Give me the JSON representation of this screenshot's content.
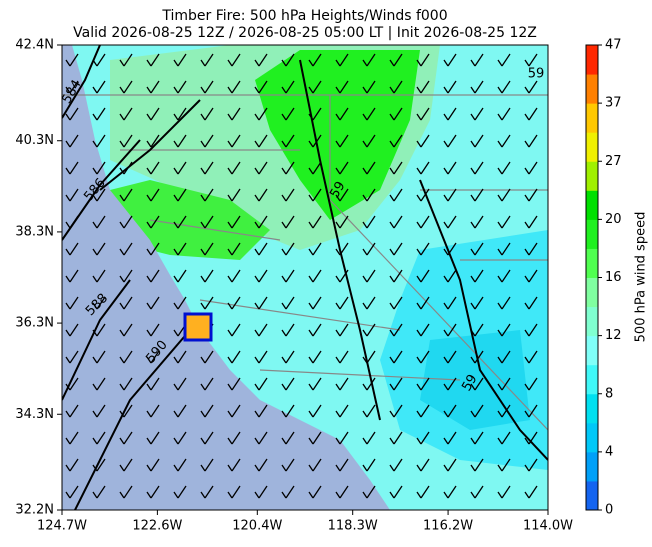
{
  "chart_data": {
    "type": "map",
    "title": "Timber Fire: 500 hPa Heights/Winds f000",
    "subtitle": "Valid 2026-08-25 12Z / 2026-08-25 05:00 LT | Init 2026-08-25 12Z",
    "xlim": [
      -124.7,
      -114.0
    ],
    "ylim": [
      32.2,
      42.4
    ],
    "xticks": [
      {
        "value": -124.7,
        "label": "124.7W"
      },
      {
        "value": -122.6,
        "label": "122.6W"
      },
      {
        "value": -120.4,
        "label": "120.4W"
      },
      {
        "value": -118.3,
        "label": "118.3W"
      },
      {
        "value": -116.2,
        "label": "116.2W"
      },
      {
        "value": -114.0,
        "label": "114.0W"
      }
    ],
    "yticks": [
      {
        "value": 32.2,
        "label": "32.2N"
      },
      {
        "value": 34.3,
        "label": "34.3N"
      },
      {
        "value": 36.3,
        "label": "36.3N"
      },
      {
        "value": 38.3,
        "label": "38.3N"
      },
      {
        "value": 40.3,
        "label": "40.3N"
      },
      {
        "value": 42.4,
        "label": "42.4N"
      }
    ],
    "contour_labels": [
      "584",
      "586",
      "588",
      "590",
      "59",
      "59",
      "59"
    ],
    "colorbar": {
      "label": "500 hPa wind speed",
      "ticks": [
        0,
        4,
        8,
        12,
        16,
        20,
        27,
        37,
        47
      ],
      "colors": [
        "#1464f0",
        "#00a0f8",
        "#00c8f8",
        "#00e0f0",
        "#40f8f8",
        "#80fff8",
        "#80ffd0",
        "#80ffa0",
        "#50ff50",
        "#20f020",
        "#00e000",
        "#a0f000",
        "#f0f000",
        "#ffc800",
        "#ff8000",
        "#ff2800"
      ]
    }
  }
}
